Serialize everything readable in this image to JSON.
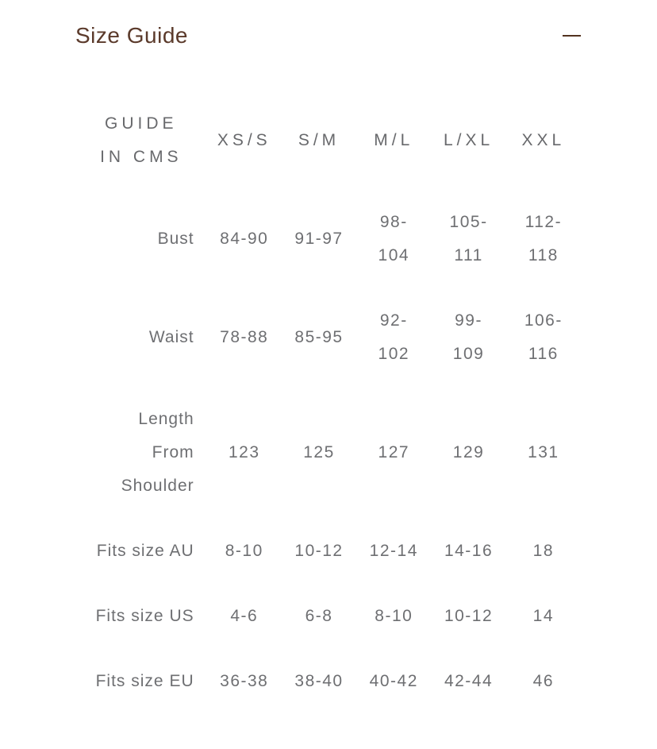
{
  "accordion": {
    "title": "Size Guide",
    "collapse_icon": "minus"
  },
  "colors": {
    "title_brown": "#5b3a2b",
    "minus_icon_brown": "#53321f",
    "table_text_gray": "#6e6f72",
    "background": "#ffffff"
  },
  "size_table": {
    "header": {
      "corner": "GUIDE\nIN CMS",
      "columns": [
        "XS/S",
        "S/M",
        "M/L",
        "L/XL",
        "XXL"
      ]
    },
    "rows": [
      {
        "label": "Bust",
        "values": [
          "84-90",
          "91-97",
          "98-\n104",
          "105-\n111",
          "112-\n118"
        ]
      },
      {
        "label": "Waist",
        "values": [
          "78-88",
          "85-95",
          "92-\n102",
          "99-\n109",
          "106-\n116"
        ]
      },
      {
        "label": "Length\nFrom\nShoulder",
        "values": [
          "123",
          "125",
          "127",
          "129",
          "131"
        ]
      },
      {
        "label": "Fits size AU",
        "values": [
          "8-10",
          "10-12",
          "12-14",
          "14-16",
          "18"
        ]
      },
      {
        "label": "Fits size US",
        "values": [
          "4-6",
          "6-8",
          "8-10",
          "10-12",
          "14"
        ]
      },
      {
        "label": "Fits size EU",
        "values": [
          "36-38",
          "38-40",
          "40-42",
          "42-44",
          "46"
        ]
      }
    ]
  }
}
